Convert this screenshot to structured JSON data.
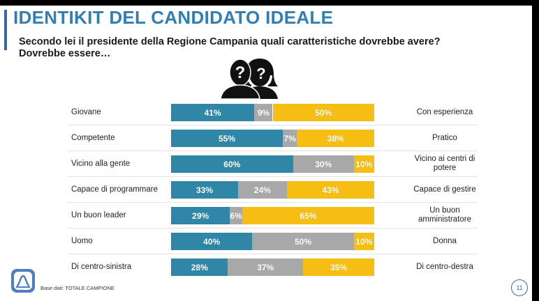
{
  "slide": {
    "title": "IDENTIKIT DEL CANDIDATO IDEALE",
    "subtitle": "Secondo lei il presidente della Regione Campania quali caratteristiche dovrebbe avere? Dovrebbe essere…",
    "footer_note": "Base dati: TOTALE CAMPIONE",
    "page_number": "11",
    "icon": "two-silhouettes-question-icon"
  },
  "colors": {
    "left": "#2f86a6",
    "middle": "#a8a8a8",
    "right": "#f6be12",
    "title": "#2f7fb5",
    "accent": "#3a6aa6"
  },
  "chart_data": {
    "type": "bar",
    "orientation": "horizontal",
    "stacked": true,
    "normalized_to": 100,
    "categories_left": [
      "Giovane",
      "Competente",
      "Vicino alla gente",
      "Capace di programmare",
      "Un buon leader",
      "Uomo",
      "Di centro-sinistra"
    ],
    "categories_right": [
      "Con esperienza",
      "Pratico",
      "Vicino ai centri di potere",
      "Capace di gestire",
      "Un buon amministratore",
      "Donna",
      "Di centro-destra"
    ],
    "series": [
      {
        "values": [
          41,
          55,
          60,
          33,
          29,
          40,
          28
        ],
        "labels": [
          "41%",
          "55%",
          "60%",
          "33%",
          "29%",
          "40%",
          "28%"
        ]
      },
      {
        "values": [
          9,
          7,
          30,
          24,
          6,
          50,
          37
        ],
        "labels": [
          "9%",
          "7%",
          "30%",
          "24%",
          "6%",
          "50%",
          "37%"
        ]
      },
      {
        "values": [
          50,
          38,
          10,
          43,
          65,
          10,
          35
        ],
        "labels": [
          "50%",
          "38%",
          "10%",
          "43%",
          "65%",
          "10%",
          "35%"
        ]
      }
    ],
    "xlim": [
      0,
      100
    ],
    "legend": "none",
    "grid": false
  }
}
